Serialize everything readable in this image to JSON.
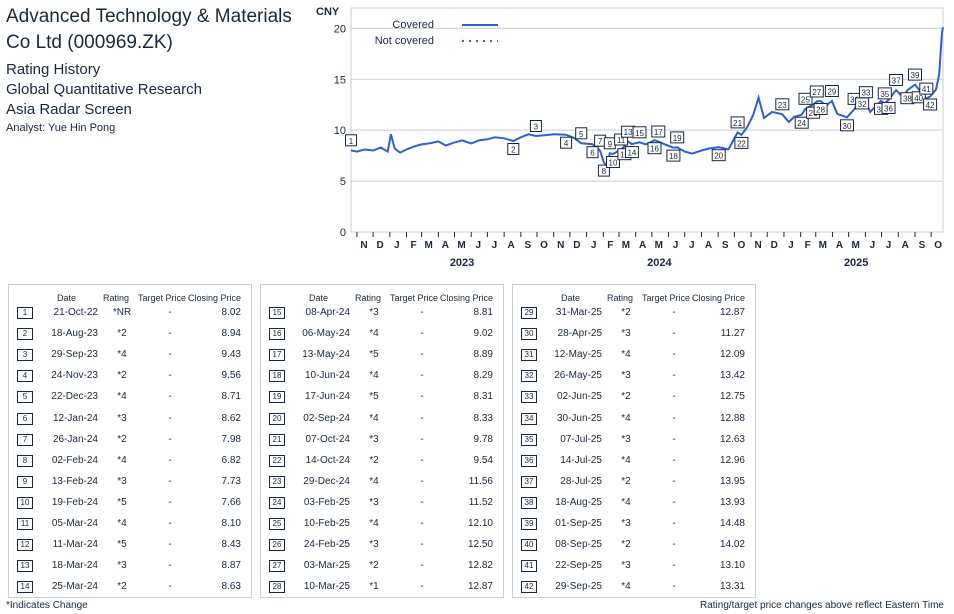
{
  "header": {
    "title": "Advanced Technology & Materials Co Ltd (000969.ZK)",
    "lines": [
      "Rating History",
      "Global Quantitative Research",
      "Asia Radar Screen"
    ],
    "analyst": "Analyst: Yue Hin Pong"
  },
  "chart_data": {
    "type": "line",
    "ylabel": "CNY",
    "ylim": [
      0,
      22
    ],
    "yticks": [
      0,
      5,
      10,
      15,
      20
    ],
    "xlim": [
      "2022-10-21",
      "2025-10-23"
    ],
    "month_labels": [
      "N",
      "D",
      "J",
      "F",
      "M",
      "A",
      "M",
      "J",
      "J",
      "A",
      "S",
      "O",
      "N",
      "D",
      "J",
      "F",
      "M",
      "A",
      "M",
      "J",
      "J",
      "A",
      "S",
      "O",
      "N",
      "D",
      "J",
      "F",
      "M",
      "A",
      "M",
      "J",
      "J",
      "A",
      "S",
      "O"
    ],
    "year_labels": [
      "2023",
      "2024",
      "2025"
    ],
    "legend": {
      "covered": "Covered",
      "not_covered": "Not covered",
      "position": "top-left"
    },
    "colors": {
      "covered": "#2d5fd6",
      "not_covered": "#e03030"
    },
    "series": [
      {
        "name": "Covered",
        "points": [
          [
            "2022-10-21",
            8.0
          ],
          [
            "2022-11-01",
            7.9
          ],
          [
            "2022-11-15",
            8.1
          ],
          [
            "2022-12-01",
            8.0
          ],
          [
            "2022-12-15",
            8.3
          ],
          [
            "2022-12-28",
            7.9
          ],
          [
            "2023-01-03",
            9.6
          ],
          [
            "2023-01-10",
            8.2
          ],
          [
            "2023-01-20",
            7.8
          ],
          [
            "2023-02-01",
            8.1
          ],
          [
            "2023-02-15",
            8.4
          ],
          [
            "2023-03-01",
            8.6
          ],
          [
            "2023-03-15",
            8.7
          ],
          [
            "2023-04-01",
            8.9
          ],
          [
            "2023-04-15",
            8.5
          ],
          [
            "2023-05-01",
            8.8
          ],
          [
            "2023-05-15",
            9.0
          ],
          [
            "2023-06-01",
            8.7
          ],
          [
            "2023-06-15",
            9.0
          ],
          [
            "2023-07-01",
            9.1
          ],
          [
            "2023-07-15",
            9.3
          ],
          [
            "2023-08-01",
            9.2
          ],
          [
            "2023-08-18",
            8.94
          ],
          [
            "2023-09-01",
            9.3
          ],
          [
            "2023-09-15",
            9.6
          ],
          [
            "2023-09-29",
            9.43
          ],
          [
            "2023-10-15",
            9.5
          ],
          [
            "2023-11-01",
            9.6
          ],
          [
            "2023-11-24",
            9.56
          ],
          [
            "2023-12-10",
            9.2
          ],
          [
            "2023-12-22",
            8.71
          ],
          [
            "2024-01-12",
            8.62
          ],
          [
            "2024-01-26",
            7.98
          ],
          [
            "2024-02-02",
            6.82
          ],
          [
            "2024-02-08",
            6.5
          ],
          [
            "2024-02-13",
            7.73
          ],
          [
            "2024-02-19",
            7.66
          ],
          [
            "2024-03-05",
            8.1
          ],
          [
            "2024-03-11",
            8.43
          ],
          [
            "2024-03-18",
            8.87
          ],
          [
            "2024-03-25",
            8.63
          ],
          [
            "2024-04-08",
            8.81
          ],
          [
            "2024-04-20",
            8.6
          ],
          [
            "2024-05-06",
            9.02
          ],
          [
            "2024-05-13",
            8.89
          ],
          [
            "2024-05-25",
            8.6
          ],
          [
            "2024-06-10",
            8.29
          ],
          [
            "2024-06-17",
            8.31
          ],
          [
            "2024-07-01",
            7.9
          ],
          [
            "2024-07-15",
            7.7
          ],
          [
            "2024-08-01",
            8.0
          ],
          [
            "2024-08-15",
            8.2
          ],
          [
            "2024-09-02",
            8.33
          ],
          [
            "2024-09-20",
            8.1
          ],
          [
            "2024-09-27",
            8.8
          ],
          [
            "2024-10-07",
            9.78
          ],
          [
            "2024-10-14",
            9.54
          ],
          [
            "2024-10-25",
            10.3
          ],
          [
            "2024-11-05",
            11.5
          ],
          [
            "2024-11-15",
            13.2
          ],
          [
            "2024-11-25",
            11.2
          ],
          [
            "2024-12-10",
            11.8
          ],
          [
            "2024-12-29",
            11.56
          ],
          [
            "2025-01-10",
            10.8
          ],
          [
            "2025-01-20",
            11.3
          ],
          [
            "2025-02-03",
            11.52
          ],
          [
            "2025-02-10",
            12.1
          ],
          [
            "2025-02-24",
            12.5
          ],
          [
            "2025-03-03",
            12.82
          ],
          [
            "2025-03-10",
            12.87
          ],
          [
            "2025-03-20",
            12.4
          ],
          [
            "2025-03-31",
            12.87
          ],
          [
            "2025-04-10",
            11.6
          ],
          [
            "2025-04-28",
            11.27
          ],
          [
            "2025-05-12",
            12.09
          ],
          [
            "2025-05-26",
            13.42
          ],
          [
            "2025-06-02",
            12.75
          ],
          [
            "2025-06-10",
            11.8
          ],
          [
            "2025-06-30",
            12.88
          ],
          [
            "2025-07-07",
            12.63
          ],
          [
            "2025-07-14",
            12.96
          ],
          [
            "2025-07-28",
            13.95
          ],
          [
            "2025-08-10",
            13.2
          ],
          [
            "2025-08-18",
            13.93
          ],
          [
            "2025-09-01",
            14.48
          ],
          [
            "2025-09-08",
            14.02
          ],
          [
            "2025-09-22",
            13.1
          ],
          [
            "2025-09-29",
            13.31
          ],
          [
            "2025-10-10",
            14.0
          ],
          [
            "2025-10-16",
            15.5
          ],
          [
            "2025-10-21",
            19.5
          ],
          [
            "2025-10-23",
            20.1
          ]
        ]
      }
    ],
    "markers": [
      {
        "label": "1",
        "date": "2022-10-21",
        "price": 8.02
      },
      {
        "label": "2",
        "date": "2023-08-18",
        "price": 8.94
      },
      {
        "label": "3",
        "date": "2023-09-29",
        "price": 9.43
      },
      {
        "label": "4",
        "date": "2023-11-24",
        "price": 9.56
      },
      {
        "label": "5",
        "date": "2023-12-22",
        "price": 8.71
      },
      {
        "label": "6",
        "date": "2024-01-12",
        "price": 8.62
      },
      {
        "label": "7",
        "date": "2024-01-26",
        "price": 7.98
      },
      {
        "label": "8",
        "date": "2024-02-02",
        "price": 6.82
      },
      {
        "label": "9",
        "date": "2024-02-13",
        "price": 7.73
      },
      {
        "label": "10",
        "date": "2024-02-19",
        "price": 7.66
      },
      {
        "label": "11",
        "date": "2024-03-05",
        "price": 8.1
      },
      {
        "label": "12",
        "date": "2024-03-11",
        "price": 8.43
      },
      {
        "label": "13",
        "date": "2024-03-18",
        "price": 8.87
      },
      {
        "label": "14",
        "date": "2024-03-25",
        "price": 8.63
      },
      {
        "label": "15",
        "date": "2024-04-08",
        "price": 8.81
      },
      {
        "label": "16",
        "date": "2024-05-06",
        "price": 9.02
      },
      {
        "label": "17",
        "date": "2024-05-13",
        "price": 8.89
      },
      {
        "label": "18",
        "date": "2024-06-10",
        "price": 8.29
      },
      {
        "label": "19",
        "date": "2024-06-17",
        "price": 8.31
      },
      {
        "label": "20",
        "date": "2024-09-02",
        "price": 8.33
      },
      {
        "label": "21",
        "date": "2024-10-07",
        "price": 9.78
      },
      {
        "label": "22",
        "date": "2024-10-14",
        "price": 9.54
      },
      {
        "label": "23",
        "date": "2024-12-29",
        "price": 11.56
      },
      {
        "label": "24",
        "date": "2025-02-03",
        "price": 11.52
      },
      {
        "label": "25",
        "date": "2025-02-10",
        "price": 12.1
      },
      {
        "label": "26",
        "date": "2025-02-24",
        "price": 12.5
      },
      {
        "label": "27",
        "date": "2025-03-03",
        "price": 12.82
      },
      {
        "label": "28",
        "date": "2025-03-10",
        "price": 12.87
      },
      {
        "label": "29",
        "date": "2025-03-31",
        "price": 12.87
      },
      {
        "label": "30",
        "date": "2025-04-28",
        "price": 11.27
      },
      {
        "label": "31",
        "date": "2025-05-12",
        "price": 12.09
      },
      {
        "label": "32",
        "date": "2025-05-26",
        "price": 13.42
      },
      {
        "label": "33",
        "date": "2025-06-02",
        "price": 12.75
      },
      {
        "label": "34",
        "date": "2025-06-30",
        "price": 12.88
      },
      {
        "label": "35",
        "date": "2025-07-07",
        "price": 12.63
      },
      {
        "label": "36",
        "date": "2025-07-14",
        "price": 12.96
      },
      {
        "label": "37",
        "date": "2025-07-28",
        "price": 13.95
      },
      {
        "label": "38",
        "date": "2025-08-18",
        "price": 13.93
      },
      {
        "label": "39",
        "date": "2025-09-01",
        "price": 14.48
      },
      {
        "label": "40",
        "date": "2025-09-08",
        "price": 14.02
      },
      {
        "label": "41",
        "date": "2025-09-22",
        "price": 13.1
      },
      {
        "label": "42",
        "date": "2025-09-29",
        "price": 13.31
      }
    ]
  },
  "table": {
    "headers": {
      "date": "Date",
      "rating": "Rating",
      "target": "Target Price",
      "close": "Closing Price"
    },
    "rows": [
      {
        "n": "1",
        "date": "21-Oct-22",
        "rating": "*NR",
        "target": "-",
        "close": "8.02"
      },
      {
        "n": "2",
        "date": "18-Aug-23",
        "rating": "*2",
        "target": "-",
        "close": "8.94"
      },
      {
        "n": "3",
        "date": "29-Sep-23",
        "rating": "*4",
        "target": "-",
        "close": "9.43"
      },
      {
        "n": "4",
        "date": "24-Nov-23",
        "rating": "*2",
        "target": "-",
        "close": "9.56"
      },
      {
        "n": "5",
        "date": "22-Dec-23",
        "rating": "*4",
        "target": "-",
        "close": "8.71"
      },
      {
        "n": "6",
        "date": "12-Jan-24",
        "rating": "*3",
        "target": "-",
        "close": "8.62"
      },
      {
        "n": "7",
        "date": "26-Jan-24",
        "rating": "*2",
        "target": "-",
        "close": "7.98"
      },
      {
        "n": "8",
        "date": "02-Feb-24",
        "rating": "*4",
        "target": "-",
        "close": "6.82"
      },
      {
        "n": "9",
        "date": "13-Feb-24",
        "rating": "*3",
        "target": "-",
        "close": "7.73"
      },
      {
        "n": "10",
        "date": "19-Feb-24",
        "rating": "*5",
        "target": "-",
        "close": "7.66"
      },
      {
        "n": "11",
        "date": "05-Mar-24",
        "rating": "*4",
        "target": "-",
        "close": "8.10"
      },
      {
        "n": "12",
        "date": "11-Mar-24",
        "rating": "*5",
        "target": "-",
        "close": "8.43"
      },
      {
        "n": "13",
        "date": "18-Mar-24",
        "rating": "*3",
        "target": "-",
        "close": "8.87"
      },
      {
        "n": "14",
        "date": "25-Mar-24",
        "rating": "*2",
        "target": "-",
        "close": "8.63"
      },
      {
        "n": "15",
        "date": "08-Apr-24",
        "rating": "*3",
        "target": "-",
        "close": "8.81"
      },
      {
        "n": "16",
        "date": "06-May-24",
        "rating": "*4",
        "target": "-",
        "close": "9.02"
      },
      {
        "n": "17",
        "date": "13-May-24",
        "rating": "*5",
        "target": "-",
        "close": "8.89"
      },
      {
        "n": "18",
        "date": "10-Jun-24",
        "rating": "*4",
        "target": "-",
        "close": "8.29"
      },
      {
        "n": "19",
        "date": "17-Jun-24",
        "rating": "*5",
        "target": "-",
        "close": "8.31"
      },
      {
        "n": "20",
        "date": "02-Sep-24",
        "rating": "*4",
        "target": "-",
        "close": "8.33"
      },
      {
        "n": "21",
        "date": "07-Oct-24",
        "rating": "*3",
        "target": "-",
        "close": "9.78"
      },
      {
        "n": "22",
        "date": "14-Oct-24",
        "rating": "*2",
        "target": "-",
        "close": "9.54"
      },
      {
        "n": "23",
        "date": "29-Dec-24",
        "rating": "*4",
        "target": "-",
        "close": "11.56"
      },
      {
        "n": "24",
        "date": "03-Feb-25",
        "rating": "*3",
        "target": "-",
        "close": "11.52"
      },
      {
        "n": "25",
        "date": "10-Feb-25",
        "rating": "*4",
        "target": "-",
        "close": "12.10"
      },
      {
        "n": "26",
        "date": "24-Feb-25",
        "rating": "*3",
        "target": "-",
        "close": "12.50"
      },
      {
        "n": "27",
        "date": "03-Mar-25",
        "rating": "*2",
        "target": "-",
        "close": "12.82"
      },
      {
        "n": "28",
        "date": "10-Mar-25",
        "rating": "*1",
        "target": "-",
        "close": "12.87"
      },
      {
        "n": "29",
        "date": "31-Mar-25",
        "rating": "*2",
        "target": "-",
        "close": "12.87"
      },
      {
        "n": "30",
        "date": "28-Apr-25",
        "rating": "*3",
        "target": "-",
        "close": "11.27"
      },
      {
        "n": "31",
        "date": "12-May-25",
        "rating": "*4",
        "target": "-",
        "close": "12.09"
      },
      {
        "n": "32",
        "date": "26-May-25",
        "rating": "*3",
        "target": "-",
        "close": "13.42"
      },
      {
        "n": "33",
        "date": "02-Jun-25",
        "rating": "*2",
        "target": "-",
        "close": "12.75"
      },
      {
        "n": "34",
        "date": "30-Jun-25",
        "rating": "*4",
        "target": "-",
        "close": "12.88"
      },
      {
        "n": "35",
        "date": "07-Jul-25",
        "rating": "*3",
        "target": "-",
        "close": "12.63"
      },
      {
        "n": "36",
        "date": "14-Jul-25",
        "rating": "*4",
        "target": "-",
        "close": "12.96"
      },
      {
        "n": "37",
        "date": "28-Jul-25",
        "rating": "*2",
        "target": "-",
        "close": "13.95"
      },
      {
        "n": "38",
        "date": "18-Aug-25",
        "rating": "*4",
        "target": "-",
        "close": "13.93"
      },
      {
        "n": "39",
        "date": "01-Sep-25",
        "rating": "*3",
        "target": "-",
        "close": "14.48"
      },
      {
        "n": "40",
        "date": "08-Sep-25",
        "rating": "*2",
        "target": "-",
        "close": "14.02"
      },
      {
        "n": "41",
        "date": "22-Sep-25",
        "rating": "*3",
        "target": "-",
        "close": "13.10"
      },
      {
        "n": "42",
        "date": "29-Sep-25",
        "rating": "*4",
        "target": "-",
        "close": "13.31"
      }
    ]
  },
  "footer": {
    "left": "*Indicates Change",
    "right": "Rating/target price changes above reflect Eastern Time"
  }
}
